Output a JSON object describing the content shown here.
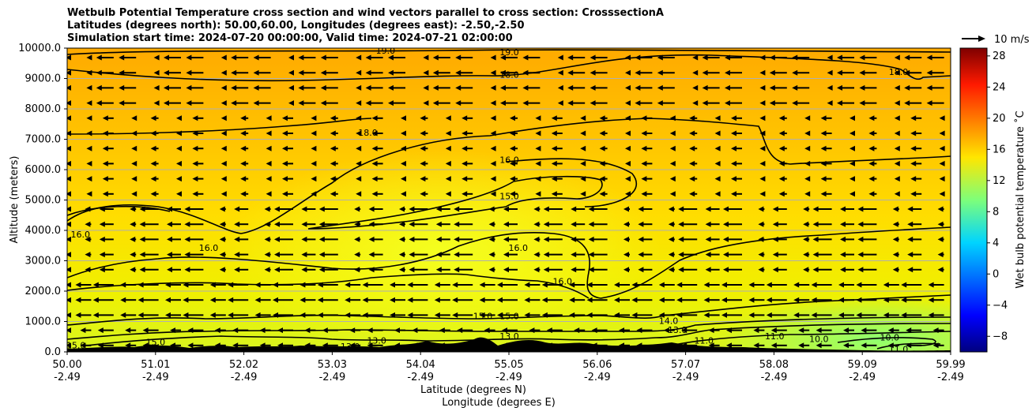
{
  "chart_data": {
    "type": "contour-cross-section",
    "title_lines": [
      "Wetbulb Potential Temperature cross section and wind vectors parallel to cross section: CrosssectionA",
      "Latitudes (degrees north): 50.00,60.00, Longitudes (degrees east): -2.50,-2.50",
      "Simulation start time: 2024-07-20 00:00:00, Valid time: 2024-07-21 02:00:00"
    ],
    "ylabel": "Altitude (meters)",
    "xlabel_lines": [
      "Latitude (degrees N)",
      "Longitude (degrees E)"
    ],
    "x_ticks_lat": [
      "50.00",
      "51.01",
      "52.02",
      "53.03",
      "54.04",
      "55.05",
      "56.06",
      "57.07",
      "58.08",
      "59.09",
      "59.99"
    ],
    "x_ticks_lon": [
      "-2.49",
      "-2.49",
      "-2.49",
      "-2.49",
      "-2.49",
      "-2.49",
      "-2.49",
      "-2.49",
      "-2.49",
      "-2.49",
      "-2.49"
    ],
    "xlim": [
      50.0,
      59.99
    ],
    "y_ticks": [
      "0.0",
      "1000.0",
      "2000.0",
      "3000.0",
      "4000.0",
      "5000.0",
      "6000.0",
      "7000.0",
      "8000.0",
      "9000.0",
      "10000.0"
    ],
    "ylim": [
      0,
      10000
    ],
    "grid": "horizontal",
    "colorbar": {
      "label": "Wet bulb potential temperature ˚C",
      "range": [
        -10,
        29
      ],
      "ticks": [
        "−8",
        "−4",
        "0",
        "4",
        "8",
        "12",
        "16",
        "20",
        "24",
        "28"
      ],
      "colormap": "jet"
    },
    "quiver_key": "10 m/s",
    "contour_labels": [
      {
        "text": "19.0",
        "lat": 53.6,
        "alt": 9900
      },
      {
        "text": "19.0",
        "lat": 55.0,
        "alt": 9850
      },
      {
        "text": "18.0",
        "lat": 55.0,
        "alt": 9100
      },
      {
        "text": "18.0",
        "lat": 53.4,
        "alt": 7200
      },
      {
        "text": "18.0",
        "lat": 59.4,
        "alt": 9200
      },
      {
        "text": "16.0",
        "lat": 55.0,
        "alt": 6300
      },
      {
        "text": "15.0",
        "lat": 55.0,
        "alt": 5100
      },
      {
        "text": "16.0",
        "lat": 50.15,
        "alt": 3850
      },
      {
        "text": "16.0",
        "lat": 51.6,
        "alt": 3400
      },
      {
        "text": "16.0",
        "lat": 55.1,
        "alt": 3400
      },
      {
        "text": "16.0",
        "lat": 55.6,
        "alt": 2300
      },
      {
        "text": "15.0",
        "lat": 54.7,
        "alt": 1150
      },
      {
        "text": "15.0",
        "lat": 55.0,
        "alt": 1150
      },
      {
        "text": "14.0",
        "lat": 56.8,
        "alt": 1000
      },
      {
        "text": "13.0",
        "lat": 56.9,
        "alt": 700
      },
      {
        "text": "11.0",
        "lat": 58.0,
        "alt": 500
      },
      {
        "text": "10.0",
        "lat": 59.3,
        "alt": 450
      },
      {
        "text": "10.0",
        "lat": 58.5,
        "alt": 400
      },
      {
        "text": "11.0",
        "lat": 59.4,
        "alt": 60
      },
      {
        "text": "15.0",
        "lat": 50.1,
        "alt": 200
      },
      {
        "text": "15.0",
        "lat": 51.0,
        "alt": 300
      },
      {
        "text": "13.0",
        "lat": 53.2,
        "alt": 150
      },
      {
        "text": "13.0",
        "lat": 53.5,
        "alt": 350
      },
      {
        "text": "13.0",
        "lat": 55.0,
        "alt": 500
      },
      {
        "text": "11.0",
        "lat": 57.2,
        "alt": 350
      }
    ],
    "contour_lines_deg_c": [
      10,
      11,
      13,
      14,
      15,
      16,
      18,
      19
    ]
  }
}
